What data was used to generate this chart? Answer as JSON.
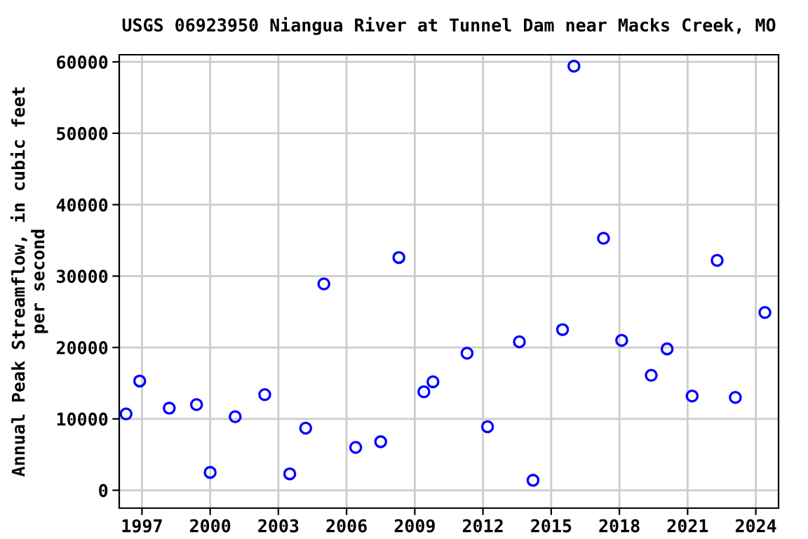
{
  "chart_data": {
    "type": "scatter",
    "title": "USGS 06923950 Niangua River at Tunnel Dam near Macks Creek, MO",
    "ylabel": "Annual Peak Streamflow, in cubic feet\nper second",
    "x": [
      1996.3,
      1996.9,
      1998.2,
      1999.4,
      2000.0,
      2001.1,
      2002.4,
      2003.5,
      2004.2,
      2005.0,
      2006.4,
      2007.5,
      2008.3,
      2009.4,
      2009.8,
      2011.3,
      2012.2,
      2013.6,
      2014.2,
      2015.5,
      2016.0,
      2017.3,
      2018.1,
      2019.4,
      2020.1,
      2021.2,
      2022.3,
      2023.1,
      2024.4
    ],
    "series": [
      {
        "color": "#0000ff",
        "values": [
          10700,
          15300,
          11500,
          12000,
          2500,
          10300,
          13400,
          2300,
          8700,
          28900,
          6000,
          6800,
          32600,
          13800,
          15200,
          19200,
          8900,
          20800,
          1400,
          22500,
          59400,
          35300,
          21000,
          16100,
          19800,
          13200,
          32200,
          13000,
          24900
        ]
      }
    ],
    "xlim": [
      1996.0,
      2025.0
    ],
    "xticks": [
      1997,
      2000,
      2003,
      2006,
      2009,
      2012,
      2015,
      2018,
      2021,
      2024
    ],
    "ylim": [
      -2500,
      61000
    ],
    "yticks": [
      0,
      10000,
      20000,
      30000,
      40000,
      50000,
      60000
    ],
    "grid": true,
    "marker": "circle"
  }
}
